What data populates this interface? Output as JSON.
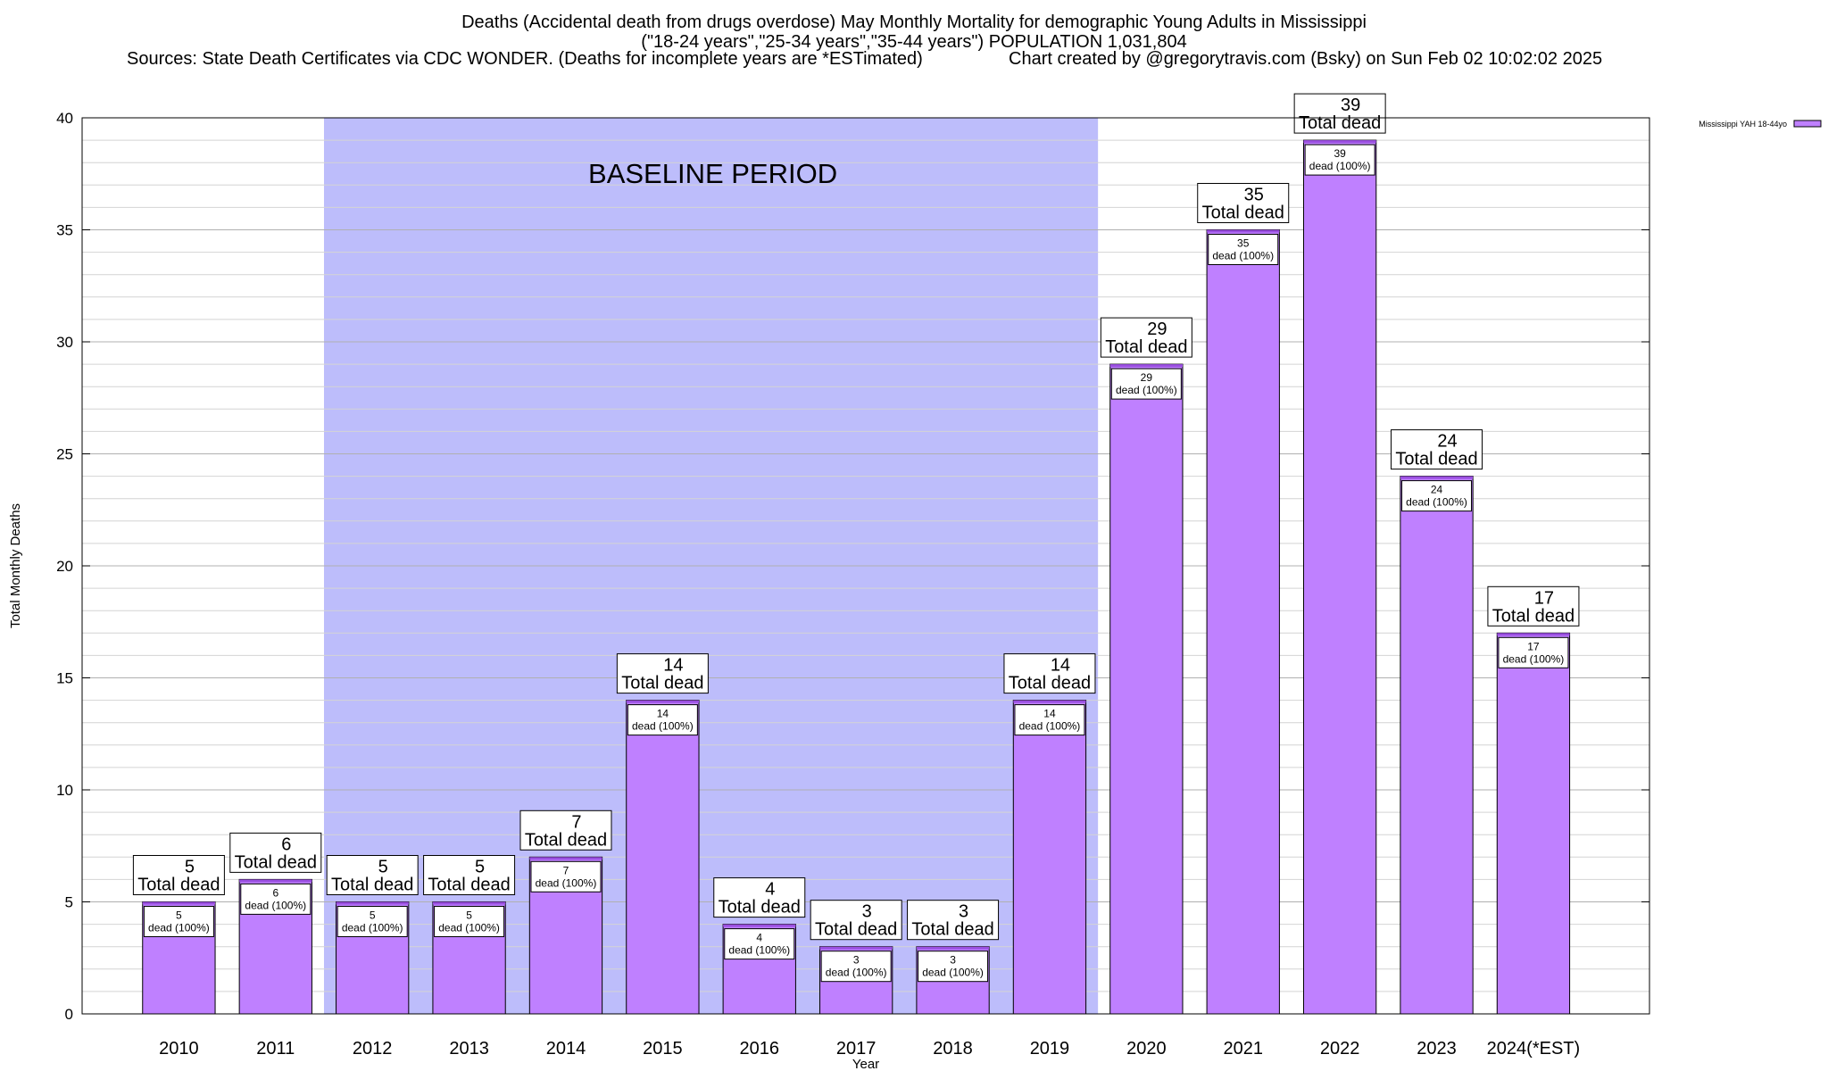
{
  "header": {
    "title_line1": "Deaths (Accidental death from drugs overdose) May Monthly Mortality for demographic Young Adults in Mississippi",
    "title_line2": "(\"18-24 years\",\"25-34 years\",\"35-44 years\") POPULATION 1,031,804",
    "sources": "Sources: State Death Certificates via CDC WONDER. (Deaths for incomplete years are *ESTimated)",
    "credit": "Chart created by @gregorytravis.com (Bsky) on Sun Feb 02 10:02:02 2025"
  },
  "chart_data": {
    "type": "bar",
    "categories": [
      "2010",
      "2011",
      "2012",
      "2013",
      "2014",
      "2015",
      "2016",
      "2017",
      "2018",
      "2019",
      "2020",
      "2021",
      "2022",
      "2023",
      "2024(*EST)"
    ],
    "series": [
      {
        "name": "Mississippi YAH 18-44yo",
        "values": [
          5,
          6,
          5,
          5,
          7,
          14,
          4,
          3,
          3,
          14,
          29,
          35,
          39,
          24,
          17
        ]
      }
    ],
    "xlabel": "Year",
    "ylabel": "Total Monthly Deaths",
    "ylim": [
      0,
      40
    ],
    "yticks": [
      0,
      5,
      10,
      15,
      20,
      25,
      30,
      35,
      40
    ],
    "grid": true,
    "legend_position": "top-right",
    "total_label": "Total dead",
    "inner_label_suffix": "dead (100%)",
    "baseline": {
      "label": "BASELINE PERIOD",
      "from": "2012",
      "to": "2019"
    },
    "colors": {
      "bar": "#bf80ff",
      "bar_top": "#9a4fe0",
      "baseline": "#bdbdfb",
      "grid": "#bdbdbd"
    }
  }
}
